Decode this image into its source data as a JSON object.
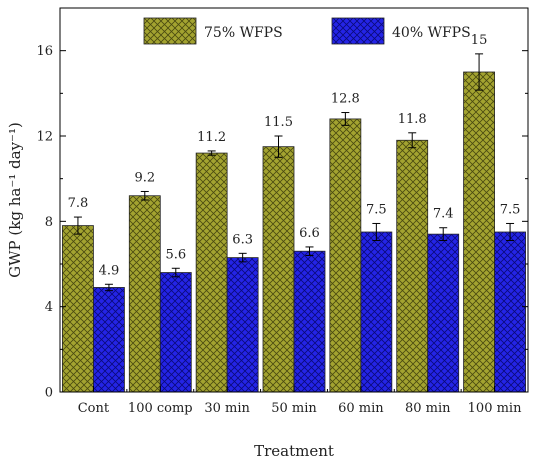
{
  "chart_data": {
    "type": "bar",
    "xlabel": "Treatment",
    "ylabel": "GWP (kg ha⁻¹ day⁻¹)",
    "ylim": [
      0,
      18
    ],
    "yticks": [
      0,
      4,
      8,
      12,
      16
    ],
    "legend_position": "top",
    "categories": [
      "Cont",
      "100 comp",
      "30 min",
      "50 min",
      "60 min",
      "80 min",
      "100 min"
    ],
    "series": [
      {
        "name": "75% WFPS",
        "color": "#a3a330",
        "pattern": "crosshatch",
        "values": [
          7.8,
          9.2,
          11.2,
          11.5,
          12.8,
          11.8,
          15
        ],
        "labels": [
          "7.8",
          "9.2",
          "11.2",
          "11.5",
          "12.8",
          "11.8",
          "15"
        ],
        "errors": [
          0.4,
          0.2,
          0.1,
          0.5,
          0.3,
          0.35,
          0.85
        ]
      },
      {
        "name": "40% WFPS",
        "color": "#2020e0",
        "pattern": "crosshatch",
        "values": [
          4.9,
          5.6,
          6.3,
          6.6,
          7.5,
          7.4,
          7.5
        ],
        "labels": [
          "4.9",
          "5.6",
          "6.3",
          "6.6",
          "7.5",
          "7.4",
          "7.5"
        ],
        "errors": [
          0.15,
          0.2,
          0.2,
          0.2,
          0.4,
          0.3,
          0.4
        ]
      }
    ]
  }
}
